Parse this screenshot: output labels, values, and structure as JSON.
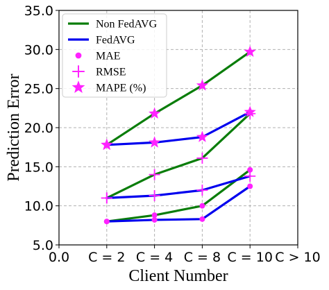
{
  "chart_data": {
    "type": "line",
    "xlabel": "Client Number",
    "ylabel": "Prediction Error",
    "x_ticks": [
      "0.0",
      "C = 2",
      "C = 4",
      "C = 8",
      "C = 10",
      "C > 10"
    ],
    "categories": [
      "C = 2",
      "C = 4",
      "C = 8",
      "C = 10"
    ],
    "ylim": [
      5.0,
      35.0
    ],
    "y_ticks": [
      "5.0",
      "10.0",
      "15.0",
      "20.0",
      "25.0",
      "30.0",
      "35.0"
    ],
    "grid": true,
    "legend_position": "top-left",
    "legend": [
      {
        "label": "Non FedAVG",
        "kind": "line",
        "color": "#0a7d0a"
      },
      {
        "label": "FedAVG",
        "kind": "line",
        "color": "#0000ee"
      },
      {
        "label": "MAE",
        "kind": "marker",
        "marker": "circle",
        "color": "#ff22ff"
      },
      {
        "label": "RMSE",
        "kind": "marker",
        "marker": "plus",
        "color": "#ff22ff"
      },
      {
        "label": "MAPE (%)",
        "kind": "marker",
        "marker": "star",
        "color": "#ff22ff"
      }
    ],
    "series": [
      {
        "line": "Non FedAVG",
        "metric": "MAE",
        "values": [
          8.0,
          8.8,
          10.0,
          14.6
        ]
      },
      {
        "line": "FedAVG",
        "metric": "MAE",
        "values": [
          8.0,
          8.2,
          8.3,
          12.5
        ]
      },
      {
        "line": "Non FedAVG",
        "metric": "RMSE",
        "values": [
          11.0,
          14.0,
          16.1,
          21.8
        ]
      },
      {
        "line": "FedAVG",
        "metric": "RMSE",
        "values": [
          11.0,
          11.3,
          12.0,
          13.8
        ]
      },
      {
        "line": "Non FedAVG",
        "metric": "MAPE (%)",
        "values": [
          17.8,
          21.8,
          25.4,
          29.7
        ]
      },
      {
        "line": "FedAVG",
        "metric": "MAPE (%)",
        "values": [
          17.8,
          18.1,
          18.8,
          22.0
        ]
      }
    ],
    "colors": {
      "non_fedavg": "#0a7d0a",
      "fedavg": "#0000ee",
      "marker": "#ff22ff",
      "grid": "#b0b0b0"
    }
  }
}
